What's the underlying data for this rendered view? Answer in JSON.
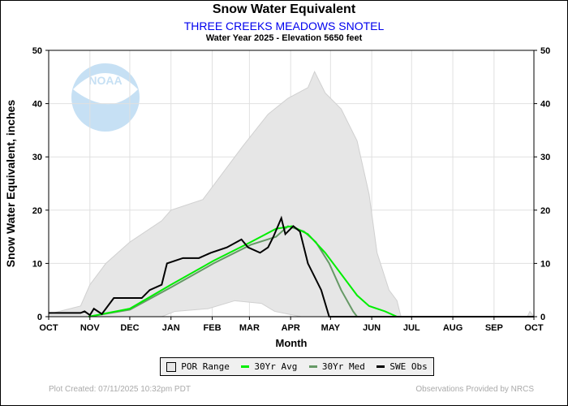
{
  "header": {
    "title": "Snow Water Equivalent",
    "station": "THREE CREEKS MEADOWS SNOTEL",
    "subtitle": "Water Year 2025 -  Elevation 5650 feet"
  },
  "footer": {
    "created": "Plot Created: 07/11/2025 10:32pm PDT",
    "provided": "Observations Provided by NRCS"
  },
  "colors": {
    "por": "#e6e6e6",
    "avg": "#00ee00",
    "med": "#669966",
    "obs": "#000000",
    "station": "#0000ee"
  },
  "chart_data": {
    "type": "line",
    "title": "Snow Water Equivalent",
    "xlabel": "Month",
    "ylabel": "Snow Water Equivalent, inches",
    "ylim": [
      0,
      50
    ],
    "yticks": [
      0,
      10,
      20,
      30,
      40,
      50
    ],
    "xlim": [
      0,
      365
    ],
    "month_ticks": [
      {
        "label": "OCT",
        "day": 0
      },
      {
        "label": "NOV",
        "day": 31
      },
      {
        "label": "DEC",
        "day": 61
      },
      {
        "label": "JAN",
        "day": 92
      },
      {
        "label": "FEB",
        "day": 123
      },
      {
        "label": "MAR",
        "day": 151
      },
      {
        "label": "APR",
        "day": 182
      },
      {
        "label": "MAY",
        "day": 212
      },
      {
        "label": "JUN",
        "day": 243
      },
      {
        "label": "JUL",
        "day": 273
      },
      {
        "label": "AUG",
        "day": 304
      },
      {
        "label": "SEP",
        "day": 335
      },
      {
        "label": "OCT",
        "day": 365
      }
    ],
    "legend": [
      "POR Range",
      "30Yr Avg",
      "30Yr Med",
      "SWE Obs"
    ],
    "por_max": [
      [
        0,
        0.5
      ],
      [
        24,
        2
      ],
      [
        31,
        6
      ],
      [
        43,
        10
      ],
      [
        61,
        14
      ],
      [
        85,
        18
      ],
      [
        92,
        20
      ],
      [
        116,
        22
      ],
      [
        128,
        26
      ],
      [
        146,
        32
      ],
      [
        165,
        38
      ],
      [
        180,
        41
      ],
      [
        195,
        43
      ],
      [
        200,
        46
      ],
      [
        208,
        42
      ],
      [
        220,
        39
      ],
      [
        232,
        33
      ],
      [
        241,
        23
      ],
      [
        247,
        12
      ],
      [
        256,
        5
      ],
      [
        262,
        3
      ],
      [
        265,
        0
      ]
    ],
    "por_min": [
      [
        0,
        0
      ],
      [
        85,
        0
      ],
      [
        95,
        1
      ],
      [
        120,
        1.5
      ],
      [
        140,
        3
      ],
      [
        160,
        2.5
      ],
      [
        170,
        1
      ],
      [
        180,
        0.5
      ],
      [
        190,
        0
      ],
      [
        360,
        0
      ],
      [
        362,
        1
      ],
      [
        365,
        0
      ]
    ],
    "avg": [
      [
        30,
        0
      ],
      [
        61,
        1.5
      ],
      [
        92,
        6
      ],
      [
        124,
        10.5
      ],
      [
        152,
        14
      ],
      [
        171,
        16.5
      ],
      [
        183,
        17
      ],
      [
        195,
        15.5
      ],
      [
        208,
        12
      ],
      [
        220,
        8
      ],
      [
        232,
        4
      ],
      [
        241,
        2
      ],
      [
        253,
        1
      ],
      [
        262,
        0
      ],
      [
        365,
        0
      ]
    ],
    "med": [
      [
        30,
        0
      ],
      [
        61,
        1.3
      ],
      [
        92,
        5.5
      ],
      [
        124,
        10
      ],
      [
        152,
        13.5
      ],
      [
        171,
        15
      ],
      [
        180,
        17
      ],
      [
        192,
        16
      ],
      [
        201,
        14
      ],
      [
        211,
        10
      ],
      [
        220,
        5
      ],
      [
        229,
        1
      ],
      [
        232,
        0
      ],
      [
        365,
        0
      ]
    ],
    "obs": [
      [
        0,
        0.7
      ],
      [
        24,
        0.7
      ],
      [
        27,
        1
      ],
      [
        31,
        0.3
      ],
      [
        34,
        1.5
      ],
      [
        40,
        0.5
      ],
      [
        49,
        3.5
      ],
      [
        70,
        3.5
      ],
      [
        76,
        5
      ],
      [
        85,
        6
      ],
      [
        89,
        10
      ],
      [
        101,
        11
      ],
      [
        113,
        11
      ],
      [
        122,
        12
      ],
      [
        134,
        13
      ],
      [
        145,
        14.5
      ],
      [
        150,
        13
      ],
      [
        159,
        12
      ],
      [
        165,
        13
      ],
      [
        169,
        15
      ],
      [
        175,
        18.5
      ],
      [
        178,
        15.5
      ],
      [
        184,
        17
      ],
      [
        189,
        16
      ],
      [
        195,
        10
      ],
      [
        205,
        5
      ],
      [
        211,
        0
      ],
      [
        365,
        0
      ]
    ]
  }
}
